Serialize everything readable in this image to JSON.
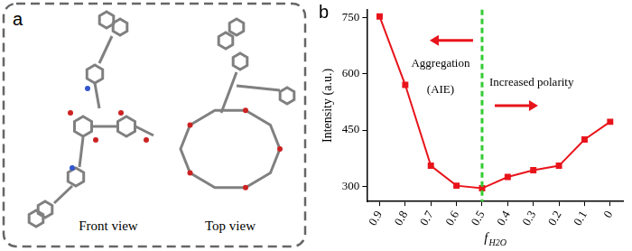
{
  "panel_a": {
    "label": "a",
    "views": [
      "Front view",
      "Top view"
    ]
  },
  "chart_data": {
    "type": "line",
    "title": "b",
    "x_label": {
      "text": "f",
      "subscript": "H2O"
    },
    "y_label": "Intensity (a.u.)",
    "categories": [
      "0.9",
      "0.8",
      "0.7",
      "0.6",
      "0.5",
      "0.4",
      "0.3",
      "0.2",
      "0.1",
      "0"
    ],
    "values": [
      752,
      570,
      355,
      302,
      295,
      325,
      343,
      355,
      425,
      472
    ],
    "color": "#e8141b",
    "marker": "square",
    "line_style": "solid",
    "ylim": [
      260,
      770
    ],
    "yticks": [
      300,
      450,
      600,
      750
    ],
    "grid": false,
    "divider": {
      "category": "0.5",
      "color": "#33cc33",
      "line_style": "dashed"
    },
    "annotations": {
      "left": [
        "Aggregation",
        "(AIE)"
      ],
      "right": [
        "Increased polarity"
      ],
      "arrow_color": "#e8141b"
    }
  }
}
